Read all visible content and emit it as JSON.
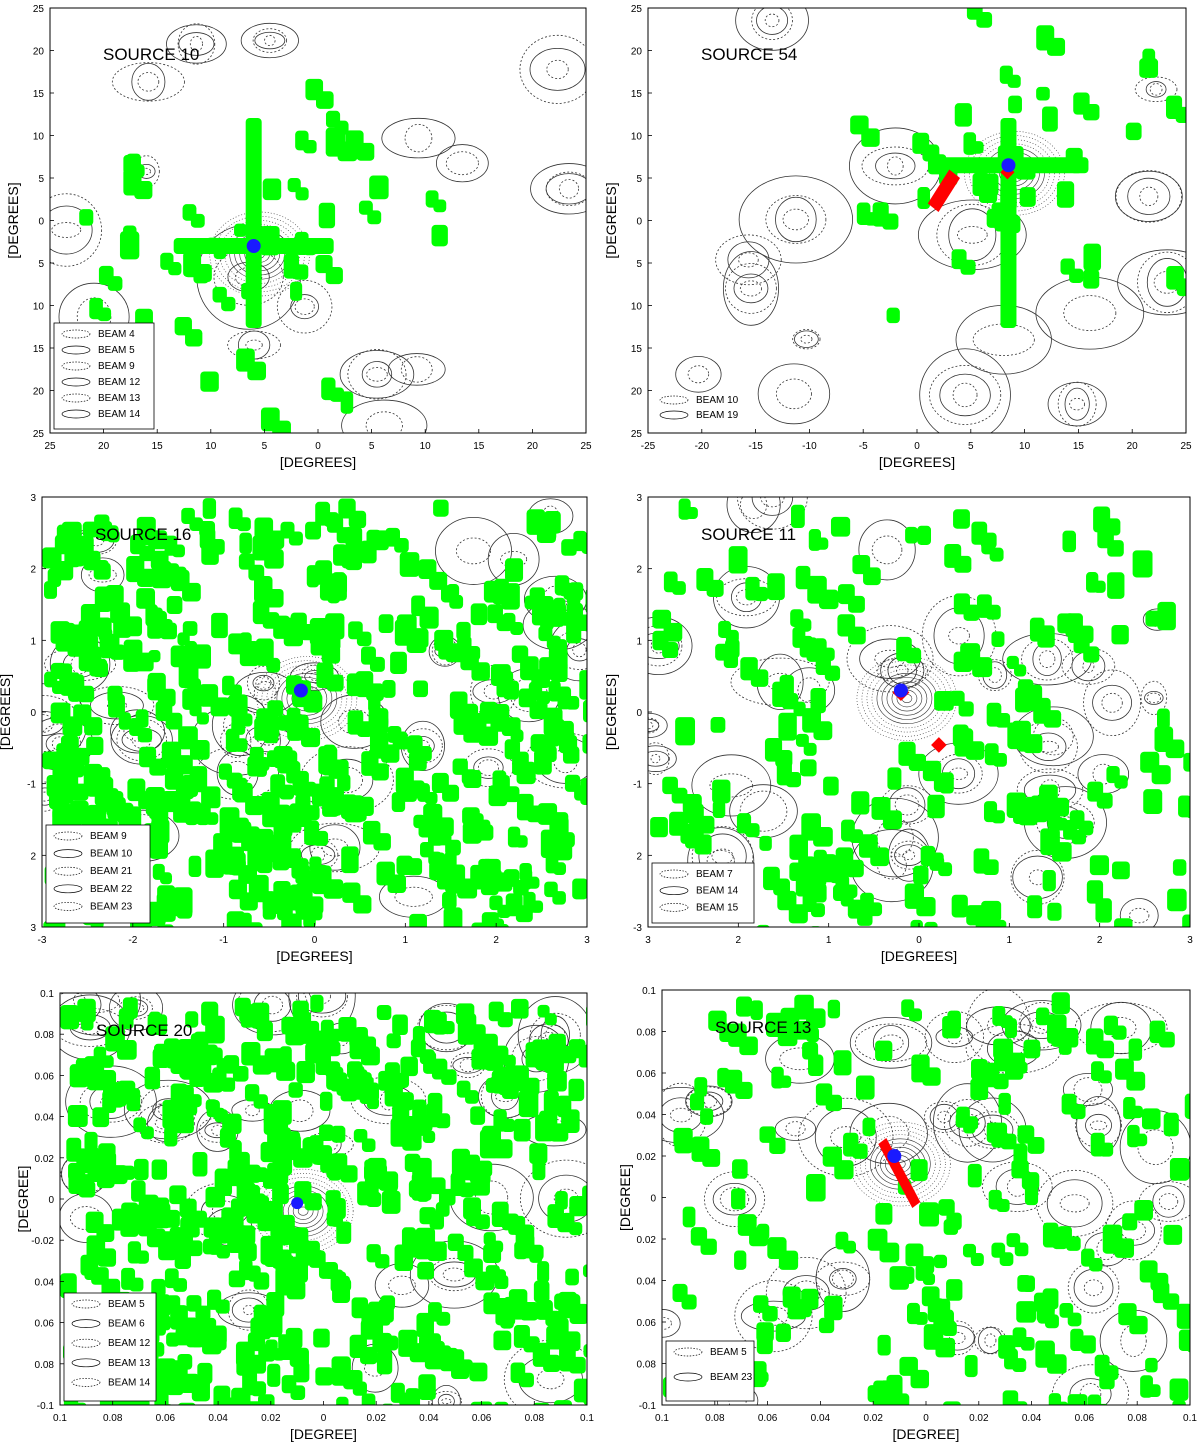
{
  "figure": {
    "panels": [
      {
        "title": "SOURCE 10",
        "xlabel": "[DEGREES]",
        "ylabel": "[DEGREES]",
        "xticks": [
          "25",
          "20",
          "15",
          "10",
          "5",
          "0",
          "5",
          "10",
          "15",
          "20",
          "25"
        ],
        "yticks": [
          "25",
          "20",
          "15",
          "10",
          "5",
          "0",
          "5",
          "10",
          "15",
          "20",
          "25"
        ],
        "legend": [
          "BEAM  4",
          "BEAM  5",
          "BEAM  9",
          "BEAM  12",
          "BEAM  13",
          "BEAM  14"
        ],
        "legend_position": "bottom-left",
        "center_marker": "blue-circle",
        "has_red_marks": false
      },
      {
        "title": "SOURCE 54",
        "xlabel": "[DEGREES]",
        "ylabel": "[DEGREES]",
        "xticks": [
          "-25",
          "-20",
          "-15",
          "-10",
          "-5",
          "0",
          "5",
          "10",
          "15",
          "20",
          "25"
        ],
        "yticks": [
          "25",
          "20",
          "15",
          "10",
          "5",
          "0",
          "5",
          "10",
          "15",
          "20",
          "25"
        ],
        "legend": [
          "BEAM  10",
          "BEAM  19"
        ],
        "legend_position": "bottom-left",
        "center_marker": "blue-circle",
        "has_red_marks": true
      },
      {
        "title": "SOURCE 16",
        "xlabel": "[DEGREES]",
        "ylabel": "[DEGREES]",
        "xticks": [
          "-3",
          "-2",
          "-1",
          "0",
          "1",
          "2",
          "3"
        ],
        "yticks": [
          "3",
          "2",
          "1",
          "0",
          "-1",
          "2",
          "3"
        ],
        "legend": [
          "BEAM  9",
          "BEAM  10",
          "BEAM  21",
          "BEAM  22",
          "BEAM  23"
        ],
        "legend_position": "bottom-left",
        "center_marker": "blue-circle",
        "has_red_marks": false
      },
      {
        "title": "SOURCE 11",
        "xlabel": "[DEGREES]",
        "ylabel": "[DEGREES]",
        "xticks": [
          "3",
          "2",
          "1",
          "0",
          "1",
          "2",
          "3"
        ],
        "yticks": [
          "3",
          "2",
          "1",
          "0",
          "-1",
          "2",
          "-3"
        ],
        "legend": [
          "BEAM  7",
          "BEAM  14",
          "BEAM  15"
        ],
        "legend_position": "bottom-left",
        "center_marker": "blue-circle",
        "has_red_marks": true
      },
      {
        "title": "SOURCE 20",
        "xlabel": "[DEGREE]",
        "ylabel": "[DEGREE]",
        "xticks": [
          "0.1",
          "0.08",
          "0.06",
          "0.04",
          "0.02",
          "0",
          "0.02",
          "0.04",
          "0.06",
          "0.08",
          "0.1"
        ],
        "yticks": [
          "0.1",
          "0.08",
          "0.06",
          "0.04",
          "0.02",
          "0",
          "-0.02",
          "0.04",
          "0.06",
          "0.08",
          "-0.1"
        ],
        "legend": [
          "BEAM  5",
          "BEAM  6",
          "BEAM  12",
          "BEAM  13",
          "BEAM  14"
        ],
        "legend_position": "bottom-left",
        "center_marker": "blue-circle",
        "has_red_marks": false
      },
      {
        "title": "SOURCE 13",
        "xlabel": "[DEGREE]",
        "ylabel": "[DEGREE]",
        "xticks": [
          "0.1",
          "0.08",
          "0.06",
          "0.04",
          "0.02",
          "0",
          "0.02",
          "0.04",
          "0.06",
          "0.08",
          "0.1"
        ],
        "yticks": [
          "0.1",
          "0.08",
          "0.06",
          "0.04",
          "0.02",
          "0",
          "0.02",
          "0.04",
          "0.06",
          "0.08",
          "-0.1"
        ],
        "legend": [
          "BEAM  5",
          "BEAM  23"
        ],
        "legend_position": "bottom-left",
        "center_marker": "blue-circle",
        "has_red_marks": true
      }
    ],
    "colors": {
      "coverage": "#00ff00",
      "source_marker": "#1a1aff",
      "red_marks": "#ff0000",
      "contours": "#333333"
    }
  },
  "chart_data": [
    {
      "type": "contour",
      "title": "SOURCE 10",
      "xlabel": "[DEGREES]",
      "ylabel": "[DEGREES]",
      "xlim": [
        -25,
        25
      ],
      "ylim": [
        -25,
        25
      ],
      "legend": [
        "BEAM 4",
        "BEAM 5",
        "BEAM 9",
        "BEAM 12",
        "BEAM 13",
        "BEAM 14"
      ],
      "source_position": [
        -6,
        -3
      ]
    },
    {
      "type": "contour",
      "title": "SOURCE 54",
      "xlabel": "[DEGREES]",
      "ylabel": "[DEGREES]",
      "xlim": [
        -25,
        25
      ],
      "ylim": [
        -25,
        25
      ],
      "legend": [
        "BEAM 10",
        "BEAM 19"
      ],
      "source_position": [
        8.5,
        6.5
      ]
    },
    {
      "type": "contour",
      "title": "SOURCE 16",
      "xlabel": "[DEGREES]",
      "ylabel": "[DEGREES]",
      "xlim": [
        -3,
        3
      ],
      "ylim": [
        -3,
        3
      ],
      "legend": [
        "BEAM 9",
        "BEAM 10",
        "BEAM 21",
        "BEAM 22",
        "BEAM 23"
      ],
      "source_position": [
        -0.15,
        0.3
      ]
    },
    {
      "type": "contour",
      "title": "SOURCE 11",
      "xlabel": "[DEGREES]",
      "ylabel": "[DEGREES]",
      "xlim": [
        -3,
        3
      ],
      "ylim": [
        -3,
        3
      ],
      "legend": [
        "BEAM 7",
        "BEAM 14",
        "BEAM 15"
      ],
      "source_position": [
        -0.2,
        0.3
      ]
    },
    {
      "type": "contour",
      "title": "SOURCE 20",
      "xlabel": "[DEGREE]",
      "ylabel": "[DEGREE]",
      "xlim": [
        -0.1,
        0.1
      ],
      "ylim": [
        -0.1,
        0.1
      ],
      "legend": [
        "BEAM 5",
        "BEAM 6",
        "BEAM 12",
        "BEAM 13",
        "BEAM 14"
      ],
      "source_position": [
        -0.01,
        -0.002
      ]
    },
    {
      "type": "contour",
      "title": "SOURCE 13",
      "xlabel": "[DEGREE]",
      "ylabel": "[DEGREE]",
      "xlim": [
        -0.1,
        0.1
      ],
      "ylim": [
        -0.1,
        0.1
      ],
      "legend": [
        "BEAM 5",
        "BEAM 23"
      ],
      "source_position": [
        -0.012,
        0.02
      ]
    }
  ]
}
